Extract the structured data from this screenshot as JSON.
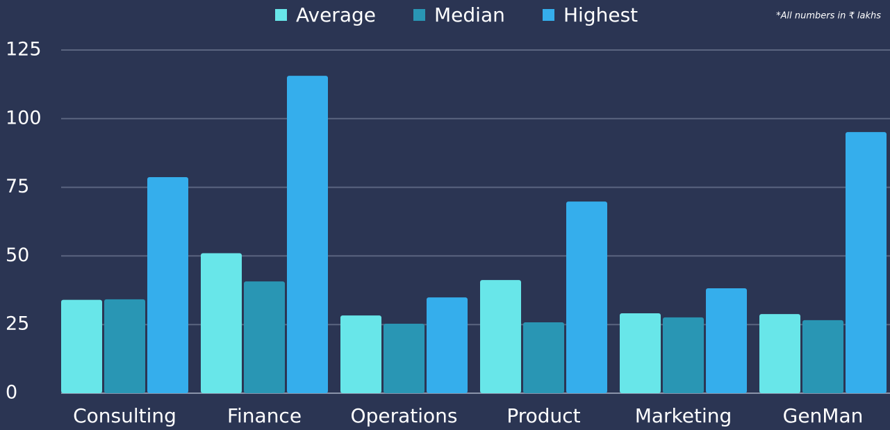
{
  "chart_data": {
    "type": "bar",
    "annotation": "*All numbers in ₹ lakhs",
    "categories": [
      "Consulting",
      "Finance",
      "Operations",
      "Product",
      "Marketing",
      "GenMan"
    ],
    "series": [
      {
        "name": "Average",
        "color": "#68e6e9",
        "values": [
          34,
          51,
          28.3,
          41.2,
          29.1,
          28.8
        ]
      },
      {
        "name": "Median",
        "color": "#2996b4",
        "values": [
          34.2,
          40.7,
          25.3,
          25.8,
          27.6,
          26.6
        ]
      },
      {
        "name": "Highest",
        "color": "#35aeec",
        "values": [
          78.7,
          115.6,
          34.9,
          69.8,
          38.2,
          95.1
        ]
      }
    ],
    "ylim": [
      0,
      125
    ],
    "yticks": [
      0,
      25,
      50,
      75,
      100,
      125
    ],
    "grid": true,
    "legend": "top"
  }
}
